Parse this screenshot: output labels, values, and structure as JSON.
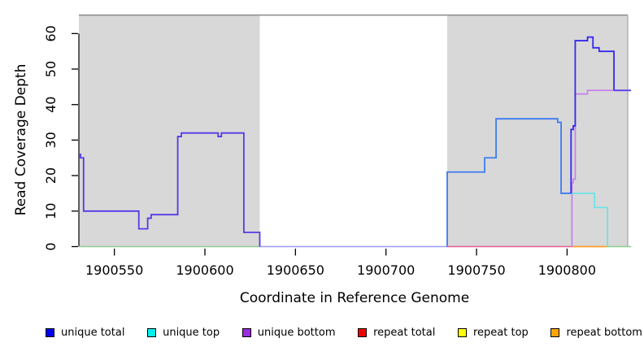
{
  "chart_data": {
    "type": "line",
    "step": true,
    "title": "",
    "xlabel": "Coordinate in Reference Genome",
    "ylabel": "Read Coverage Depth",
    "xlim": [
      1900530.4,
      1900835.3
    ],
    "ylim": [
      0,
      65.2
    ],
    "x_ticks": [
      1900550,
      1900600,
      1900650,
      1900700,
      1900750,
      1900800
    ],
    "y_ticks": [
      0,
      10,
      20,
      30,
      40,
      50,
      60
    ],
    "grid": false,
    "legend_position": "bottom",
    "background_regions": [
      {
        "from": 1900530.4,
        "to": 1900630.3,
        "color": "#d8d8d8"
      },
      {
        "from": 1900733.8,
        "to": 1900833.5,
        "color": "#d8d8d8"
      }
    ],
    "frame_top_color": "#8f8f8f",
    "frame_right_color": "#acacac",
    "series": [
      {
        "name": "unique total",
        "color": "#0000F0",
        "steps": [
          [
            1900530,
            26
          ],
          [
            1900531,
            25
          ],
          [
            1900533,
            10
          ],
          [
            1900564,
            5
          ],
          [
            1900568,
            8
          ],
          [
            1900570,
            9
          ],
          [
            1900585,
            31
          ],
          [
            1900587,
            32
          ],
          [
            1900607,
            31
          ],
          [
            1900609,
            32
          ],
          [
            1900622,
            4
          ],
          [
            1900630,
            0
          ],
          [
            1900734,
            21
          ],
          [
            1900755,
            25
          ],
          [
            1900761,
            36
          ],
          [
            1900795,
            35
          ],
          [
            1900797,
            15
          ],
          [
            1900802,
            33
          ],
          [
            1900803,
            34
          ],
          [
            1900805,
            58
          ],
          [
            1900811,
            59
          ],
          [
            1900814,
            56
          ],
          [
            1900818,
            55
          ],
          [
            1900826,
            44
          ],
          [
            1900835,
            44
          ]
        ]
      },
      {
        "name": "unique top",
        "color": "#00EEEE",
        "steps": [
          [
            1900530,
            0
          ],
          [
            1900734,
            21
          ],
          [
            1900755,
            25
          ],
          [
            1900761,
            36
          ],
          [
            1900795,
            35
          ],
          [
            1900797,
            15
          ],
          [
            1900815,
            11
          ],
          [
            1900822,
            0
          ],
          [
            1900835,
            0
          ]
        ]
      },
      {
        "name": "unique bottom",
        "color": "#9D2BE0",
        "steps": [
          [
            1900530,
            26
          ],
          [
            1900531,
            25
          ],
          [
            1900533,
            10
          ],
          [
            1900564,
            5
          ],
          [
            1900568,
            8
          ],
          [
            1900570,
            9
          ],
          [
            1900585,
            31
          ],
          [
            1900587,
            32
          ],
          [
            1900607,
            31
          ],
          [
            1900609,
            32
          ],
          [
            1900622,
            4
          ],
          [
            1900630,
            0
          ],
          [
            1900803,
            18
          ],
          [
            1900804,
            19
          ],
          [
            1900805,
            43
          ],
          [
            1900811,
            44
          ],
          [
            1900835,
            44
          ]
        ]
      },
      {
        "name": "repeat total",
        "color": "#F00000",
        "steps": [
          [
            1900530,
            0
          ],
          [
            1900835,
            0
          ]
        ]
      },
      {
        "name": "repeat top",
        "color": "#FFFF00",
        "steps": [
          [
            1900530,
            0
          ],
          [
            1900835,
            0
          ]
        ]
      },
      {
        "name": "repeat bottom",
        "color": "#FFA500",
        "steps": [
          [
            1900530,
            0
          ],
          [
            1900835,
            0
          ]
        ]
      }
    ],
    "visible_segments": [
      {
        "name": "baseline-left-green",
        "color": "#8CCD8F",
        "width": 1.6,
        "points": [
          [
            1900530.4,
            0
          ],
          [
            1900630.3,
            0
          ]
        ]
      },
      {
        "name": "baseline-gap-periwinkle",
        "color": "#9B9BF2",
        "width": 1.6,
        "points": [
          [
            1900630.3,
            0
          ],
          [
            1900733.8,
            0
          ]
        ]
      },
      {
        "name": "baseline-right-red",
        "color": "#E55C92",
        "width": 1.6,
        "points": [
          [
            1900733.8,
            0
          ],
          [
            1900802.7,
            0
          ]
        ]
      },
      {
        "name": "baseline-orange",
        "color": "#FF9E2A",
        "width": 1.8,
        "points": [
          [
            1900802.7,
            0
          ],
          [
            1900822.3,
            0
          ]
        ]
      },
      {
        "name": "baseline-right-green",
        "color": "#8CCD8F",
        "width": 1.6,
        "points": [
          [
            1900822.3,
            0
          ],
          [
            1900835.3,
            0
          ]
        ]
      },
      {
        "name": "unique-bottom-rise",
        "color": "#C580EA",
        "width": 1.7,
        "points": [
          [
            1900802.7,
            0
          ],
          [
            1900802.7,
            18
          ],
          [
            1900803.4,
            19
          ],
          [
            1900804.5,
            43
          ],
          [
            1900811.3,
            44
          ],
          [
            1900835.3,
            44
          ]
        ]
      },
      {
        "name": "unique-top-visible",
        "color": "#66E4E6",
        "width": 1.7,
        "points": [
          [
            1900802.2,
            15
          ],
          [
            1900815.2,
            15
          ],
          [
            1900815.2,
            11
          ],
          [
            1900822.3,
            11
          ],
          [
            1900822.3,
            0
          ]
        ]
      },
      {
        "name": "unique-left-violet",
        "color": "#5639E8",
        "width": 1.8,
        "points": [
          [
            1900530.4,
            26
          ],
          [
            1900531.3,
            25
          ],
          [
            1900533,
            10
          ],
          [
            1900563.5,
            5
          ],
          [
            1900568.4,
            8
          ],
          [
            1900570.3,
            9
          ],
          [
            1900585,
            31
          ],
          [
            1900587,
            32
          ],
          [
            1900607.3,
            31
          ],
          [
            1900609.1,
            32
          ],
          [
            1900621.5,
            4
          ],
          [
            1900630.3,
            0
          ]
        ]
      },
      {
        "name": "unique-total-right-blue",
        "color": "#3D7BF0",
        "width": 1.8,
        "points": [
          [
            1900733.8,
            0
          ],
          [
            1900733.8,
            21
          ],
          [
            1900754.5,
            25
          ],
          [
            1900760.8,
            36
          ],
          [
            1900794.8,
            35
          ],
          [
            1900796.7,
            15
          ],
          [
            1900802.2,
            15
          ]
        ]
      },
      {
        "name": "unique-total-peak",
        "color": "#3629EC",
        "width": 1.8,
        "points": [
          [
            1900802.2,
            15
          ],
          [
            1900802.2,
            33
          ],
          [
            1900803.4,
            34
          ],
          [
            1900804.5,
            58
          ],
          [
            1900811.3,
            59
          ],
          [
            1900814.3,
            56
          ],
          [
            1900817.7,
            55
          ],
          [
            1900825.9,
            55
          ],
          [
            1900825.9,
            44
          ]
        ]
      },
      {
        "name": "unique-total-tail",
        "color": "#5639E8",
        "width": 1.8,
        "points": [
          [
            1900825.9,
            44
          ],
          [
            1900835.3,
            44
          ]
        ]
      }
    ],
    "legend": [
      {
        "label": "unique total",
        "color": "#0000F0"
      },
      {
        "label": "unique top",
        "color": "#00EEEE"
      },
      {
        "label": "unique bottom",
        "color": "#9D2BE0"
      },
      {
        "label": "repeat total",
        "color": "#F00000"
      },
      {
        "label": "repeat top",
        "color": "#FFFF00"
      },
      {
        "label": "repeat bottom",
        "color": "#FFA500"
      }
    ]
  }
}
